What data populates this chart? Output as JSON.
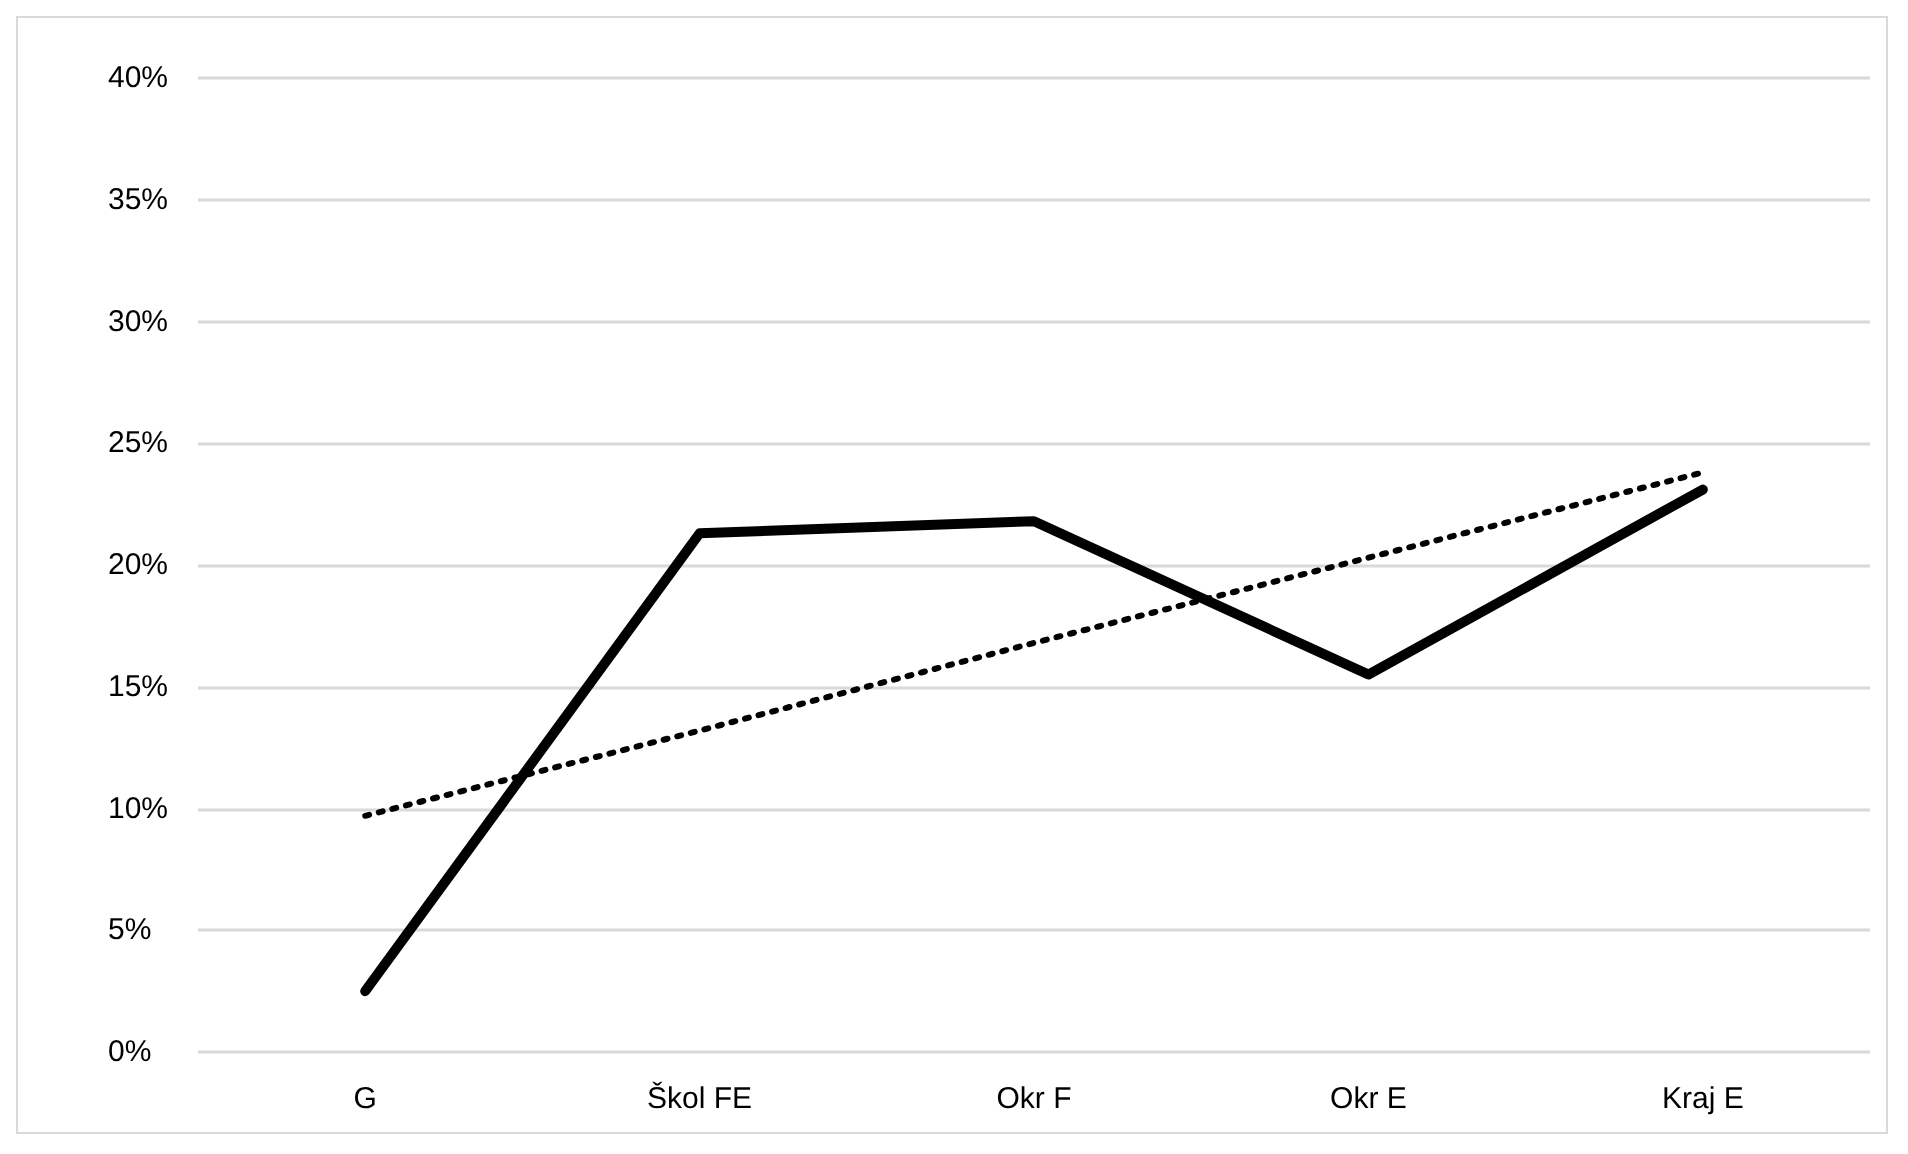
{
  "chart_data": {
    "type": "line",
    "categories": [
      "G",
      "Škol FE",
      "Okr F",
      "Okr E",
      "Kraj E"
    ],
    "series": [
      {
        "color": "#000000",
        "values": [
          2.5,
          21.3,
          21.8,
          15.5,
          23.1
        ],
        "line_style": "solid"
      },
      {
        "color": "#000000",
        "values": [
          9.7,
          13.2,
          16.8,
          20.3,
          23.8
        ],
        "line_style": "dotted"
      }
    ],
    "ylim": [
      0,
      40
    ],
    "yticks": [
      {
        "value": 0,
        "label": "0%"
      },
      {
        "value": 5,
        "label": "5%"
      },
      {
        "value": 10,
        "label": "10%"
      },
      {
        "value": 15,
        "label": "15%"
      },
      {
        "value": 20,
        "label": "20%"
      },
      {
        "value": 25,
        "label": "25%"
      },
      {
        "value": 30,
        "label": "30%"
      },
      {
        "value": 35,
        "label": "35%"
      },
      {
        "value": 40,
        "label": "40%"
      }
    ],
    "grid": "y",
    "marker": "none"
  }
}
